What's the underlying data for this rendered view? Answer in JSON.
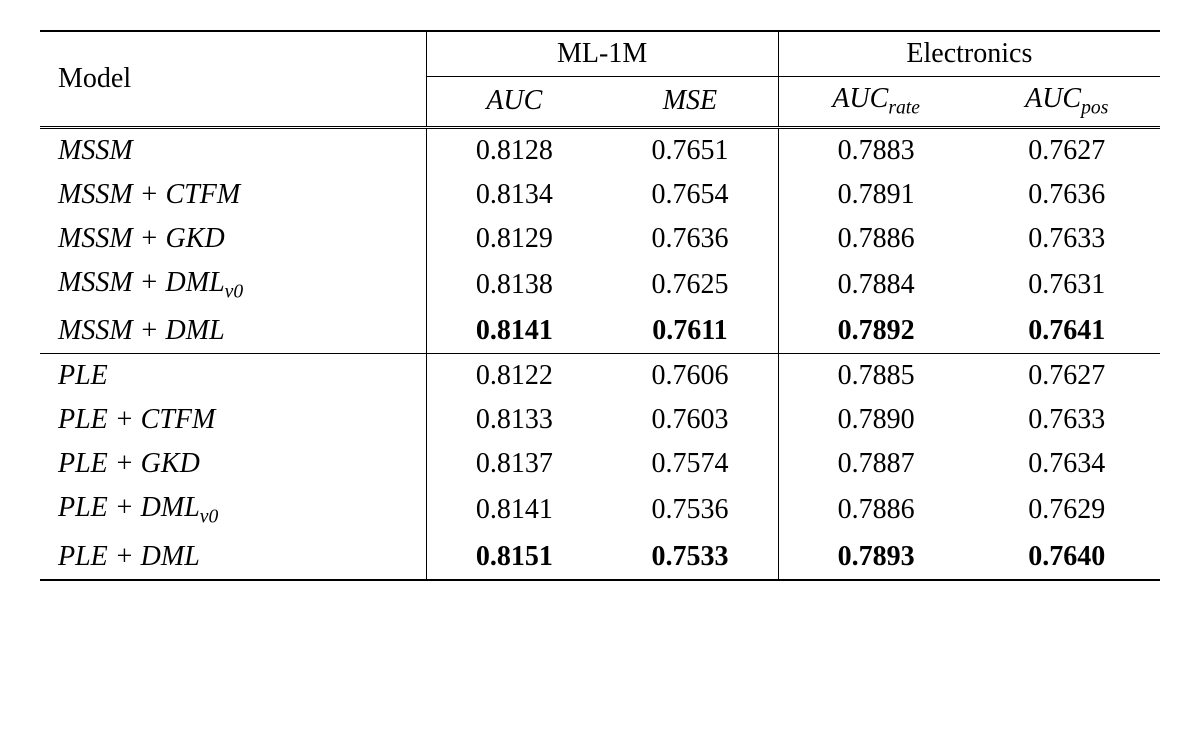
{
  "table": {
    "header": {
      "model_label": "Model",
      "group1": "ML-1M",
      "group2": "Electronics",
      "col1": "AUC",
      "col2": "MSE",
      "col3_main": "AUC",
      "col3_sub": "rate",
      "col4_main": "AUC",
      "col4_sub": "pos"
    },
    "rows": [
      {
        "model": "MSSM",
        "sub": "",
        "c1": "0.8128",
        "c2": "0.7651",
        "c3": "0.7883",
        "c4": "0.7627",
        "bold": false
      },
      {
        "model": "MSSM + CTFM",
        "sub": "",
        "c1": "0.8134",
        "c2": "0.7654",
        "c3": "0.7891",
        "c4": "0.7636",
        "bold": false
      },
      {
        "model": "MSSM + GKD",
        "sub": "",
        "c1": "0.8129",
        "c2": "0.7636",
        "c3": "0.7886",
        "c4": "0.7633",
        "bold": false
      },
      {
        "model": "MSSM + DML",
        "sub": "v0",
        "c1": "0.8138",
        "c2": "0.7625",
        "c3": "0.7884",
        "c4": "0.7631",
        "bold": false
      },
      {
        "model": "MSSM + DML",
        "sub": "",
        "c1": "0.8141",
        "c2": "0.7611",
        "c3": "0.7892",
        "c4": "0.7641",
        "bold": true
      },
      {
        "model": "PLE",
        "sub": "",
        "c1": "0.8122",
        "c2": "0.7606",
        "c3": "0.7885",
        "c4": "0.7627",
        "bold": false
      },
      {
        "model": "PLE + CTFM",
        "sub": "",
        "c1": "0.8133",
        "c2": "0.7603",
        "c3": "0.7890",
        "c4": "0.7633",
        "bold": false
      },
      {
        "model": "PLE + GKD",
        "sub": "",
        "c1": "0.8137",
        "c2": "0.7574",
        "c3": "0.7887",
        "c4": "0.7634",
        "bold": false
      },
      {
        "model": "PLE + DML",
        "sub": "v0",
        "c1": "0.8141",
        "c2": "0.7536",
        "c3": "0.7886",
        "c4": "0.7629",
        "bold": false
      },
      {
        "model": "PLE + DML",
        "sub": "",
        "c1": "0.8151",
        "c2": "0.7533",
        "c3": "0.7893",
        "c4": "0.7640",
        "bold": true
      }
    ],
    "section_break_after_index": 4,
    "colors": {
      "text": "#000000",
      "background": "#ffffff",
      "rule": "#000000"
    },
    "font": {
      "family": "Times New Roman",
      "base_size_pt": 28
    }
  }
}
